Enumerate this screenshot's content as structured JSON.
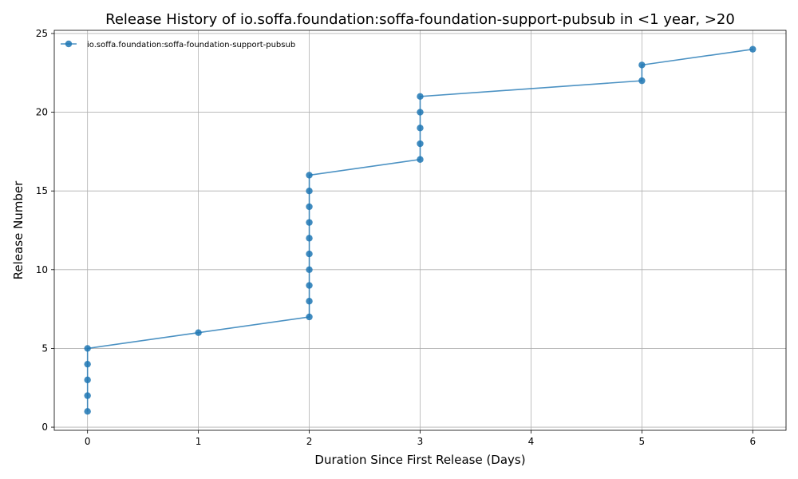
{
  "chart_data": {
    "type": "line",
    "title": "Release History of io.soffa.foundation:soffa-foundation-support-pubsub in <1 year, >20",
    "xlabel": "Duration Since First Release (Days)",
    "ylabel": "Release Number",
    "xlim": [
      -0.3,
      6.3
    ],
    "ylim": [
      -0.2,
      25.2
    ],
    "xticks": [
      0,
      1,
      2,
      3,
      4,
      5,
      6
    ],
    "yticks": [
      0,
      5,
      10,
      15,
      20,
      25
    ],
    "grid": true,
    "legend_position": "top-left",
    "series": [
      {
        "name": "io.soffa.foundation:soffa-foundation-support-pubsub",
        "color": "#1f77b4",
        "x": [
          0,
          0,
          0,
          0,
          0,
          1,
          2,
          2,
          2,
          2,
          2,
          2,
          2,
          2,
          2,
          2,
          3,
          3,
          3,
          3,
          3,
          5,
          5,
          6
        ],
        "y": [
          1,
          2,
          3,
          4,
          5,
          6,
          7,
          8,
          9,
          10,
          11,
          12,
          13,
          14,
          15,
          16,
          17,
          18,
          19,
          20,
          21,
          22,
          23,
          24
        ]
      }
    ]
  }
}
